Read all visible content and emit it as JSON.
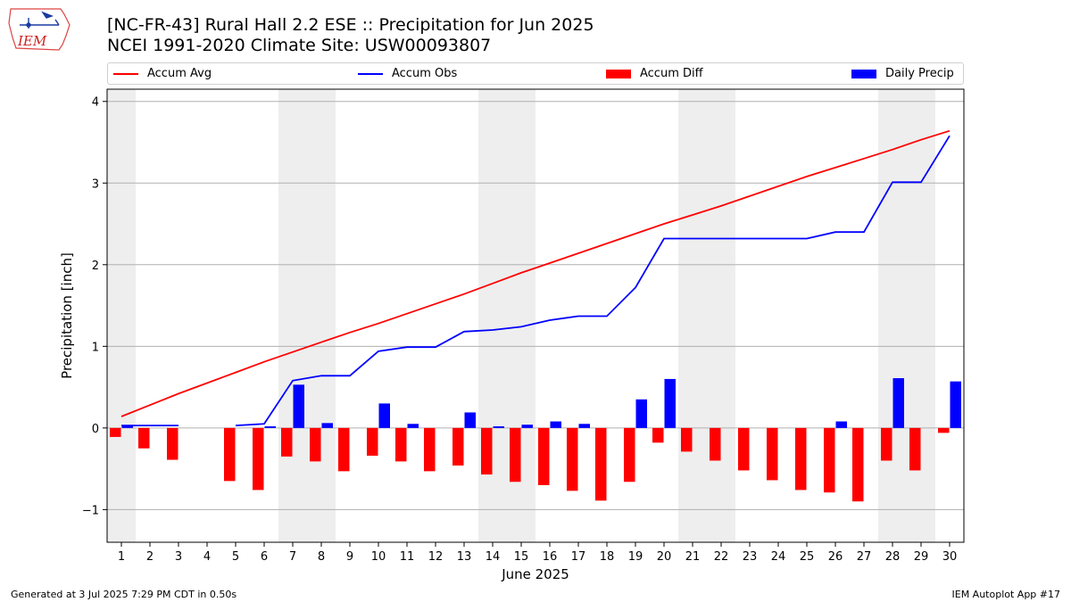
{
  "title": {
    "line1": "[NC-FR-43] Rural Hall 2.2 ESE :: Precipitation for Jun 2025",
    "line2": "NCEI 1991-2020 Climate Site: USW00093807"
  },
  "logo": {
    "text": "IEM"
  },
  "legend": {
    "accum_avg": "Accum Avg",
    "accum_obs": "Accum Obs",
    "accum_diff": "Accum Diff",
    "daily_precip": "Daily Precip"
  },
  "footer": {
    "left": "Generated at 3 Jul 2025 7:29 PM CDT in 0.50s",
    "right": "IEM Autoplot App #17"
  },
  "chart_data": {
    "type": "bar",
    "xlabel": "June 2025",
    "ylabel": "Precipitation [inch]",
    "x": [
      1,
      2,
      3,
      4,
      5,
      6,
      7,
      8,
      9,
      10,
      11,
      12,
      13,
      14,
      15,
      16,
      17,
      18,
      19,
      20,
      21,
      22,
      23,
      24,
      25,
      26,
      27,
      28,
      29,
      30
    ],
    "ylim": [
      -1.4,
      4.15
    ],
    "yticks": [
      -1,
      0,
      1,
      2,
      3,
      4
    ],
    "grid": "y",
    "legend_position": "top",
    "weekend_shading": [
      [
        1,
        1
      ],
      [
        7,
        8
      ],
      [
        14,
        15
      ],
      [
        21,
        22
      ],
      [
        28,
        29
      ]
    ],
    "colors": {
      "accum_avg": "#ff0000",
      "accum_obs": "#0000ff",
      "accum_diff": "#ff0000",
      "daily_precip": "#0000ff",
      "weekend": "#eeeeee"
    },
    "series": [
      {
        "name": "Accum Avg",
        "kind": "line",
        "values": [
          0.14,
          0.28,
          0.42,
          0.55,
          0.68,
          0.81,
          0.93,
          1.05,
          1.17,
          1.28,
          1.4,
          1.52,
          1.64,
          1.77,
          1.9,
          2.02,
          2.14,
          2.26,
          2.38,
          2.5,
          2.61,
          2.72,
          2.84,
          2.96,
          3.08,
          3.19,
          3.3,
          3.41,
          3.53,
          3.64
        ]
      },
      {
        "name": "Accum Obs",
        "kind": "line",
        "values": [
          0.03,
          0.03,
          0.03,
          null,
          0.03,
          0.05,
          0.58,
          0.64,
          0.64,
          0.94,
          0.99,
          0.99,
          1.18,
          1.2,
          1.24,
          1.32,
          1.37,
          1.37,
          1.72,
          2.32,
          2.32,
          2.32,
          2.32,
          2.32,
          2.32,
          2.4,
          2.4,
          3.01,
          3.01,
          3.58
        ]
      },
      {
        "name": "Accum Diff",
        "kind": "bar",
        "values": [
          -0.11,
          -0.25,
          -0.39,
          null,
          -0.65,
          -0.76,
          -0.35,
          -0.41,
          -0.53,
          -0.34,
          -0.41,
          -0.53,
          -0.46,
          -0.57,
          -0.66,
          -0.7,
          -0.77,
          -0.89,
          -0.66,
          -0.18,
          -0.29,
          -0.4,
          -0.52,
          -0.64,
          -0.76,
          -0.79,
          -0.9,
          -0.4,
          -0.52,
          -0.06
        ]
      },
      {
        "name": "Daily Precip",
        "kind": "bar",
        "values": [
          0.03,
          0.0,
          0.0,
          null,
          0.0,
          0.02,
          0.53,
          0.06,
          0.0,
          0.3,
          0.05,
          0.0,
          0.19,
          0.02,
          0.04,
          0.08,
          0.05,
          0.0,
          0.35,
          0.6,
          0.0,
          0.0,
          0.0,
          0.0,
          0.0,
          0.08,
          0.0,
          0.61,
          0.0,
          0.57
        ]
      }
    ]
  }
}
